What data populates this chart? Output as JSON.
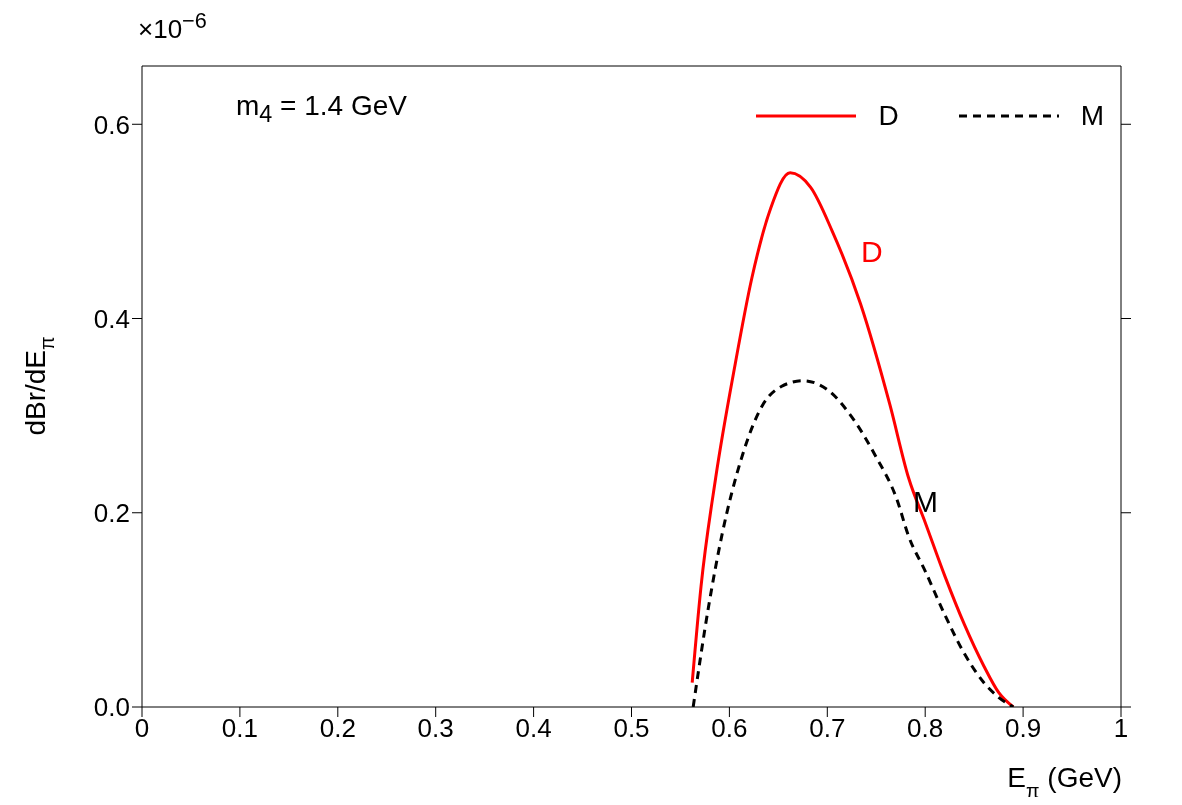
{
  "chart_data": {
    "type": "line",
    "xlabel": "E$_{π}$ (GeV)",
    "ylabel": "dBr/dE$_{π}$",
    "xlim": [
      0,
      1
    ],
    "xticks": [
      0,
      0.1,
      0.2,
      0.3,
      0.4,
      0.5,
      0.6,
      0.7,
      0.8,
      0.9,
      1
    ],
    "ylim": [
      0,
      0.66
    ],
    "yticks": [
      {
        "value": 0,
        "label": "0.0"
      },
      0.2,
      0.4,
      0.6
    ],
    "grid": false,
    "legend": "top right",
    "series": [
      {
        "name": "D",
        "color": "#ff0000",
        "line_style": "solid",
        "x": [
          0.562,
          0.571,
          0.586,
          0.605,
          0.623,
          0.642,
          0.662,
          0.683,
          0.705,
          0.734,
          0.764,
          0.783,
          0.8,
          0.82,
          0.84,
          0.86,
          0.875,
          0.89
        ],
        "values": [
          0.025,
          0.124,
          0.236,
          0.348,
          0.442,
          0.513,
          0.55,
          0.535,
          0.49,
          0.415,
          0.311,
          0.236,
          0.19,
          0.135,
          0.085,
          0.042,
          0.015,
          0.0
        ]
      },
      {
        "name": "M",
        "color": "#000000",
        "line_style": "dashed",
        "x": [
          0.563,
          0.579,
          0.593,
          0.612,
          0.634,
          0.653,
          0.675,
          0.701,
          0.724,
          0.749,
          0.771,
          0.783,
          0.8,
          0.82,
          0.84,
          0.86,
          0.875,
          0.89
        ],
        "values": [
          0.0,
          0.105,
          0.18,
          0.255,
          0.311,
          0.33,
          0.336,
          0.326,
          0.3,
          0.259,
          0.214,
          0.176,
          0.14,
          0.095,
          0.055,
          0.025,
          0.01,
          0.0
        ]
      }
    ],
    "annotations": [
      "D",
      "M",
      "m$_{4}$ = 1.4 GeV",
      "×10$^{−6}$"
    ]
  }
}
